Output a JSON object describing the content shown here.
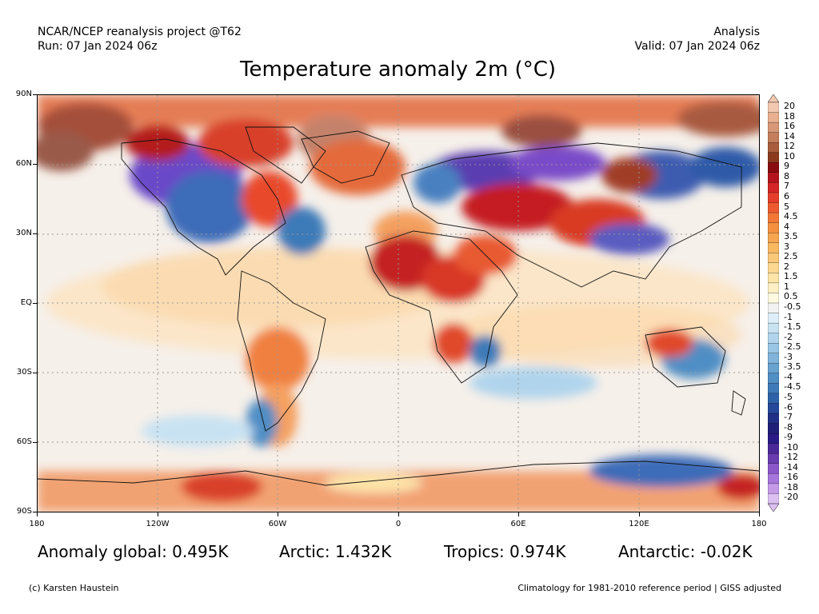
{
  "header": {
    "left_line1": "NCAR/NCEP reanalysis project @T62",
    "left_line2": "Run: 07 Jan 2024 06z",
    "right_line1": "Analysis",
    "right_line2": "Valid: 07 Jan 2024 06z"
  },
  "title": "Temperature anomaly 2m (°C)",
  "axes": {
    "lat_labels": [
      "90N",
      "60N",
      "30N",
      "EQ",
      "30S",
      "60S",
      "90S"
    ],
    "lon_labels": [
      "180",
      "120W",
      "60W",
      "0",
      "60E",
      "120E",
      "180"
    ]
  },
  "colorbar": {
    "labels": [
      "20",
      "18",
      "16",
      "14",
      "12",
      "10",
      "9",
      "8",
      "7",
      "6",
      "5",
      "4.5",
      "4",
      "3.5",
      "3",
      "2.5",
      "2",
      "1.5",
      "1",
      "0.5",
      "-0.5",
      "-1",
      "-1.5",
      "-2",
      "-2.5",
      "-3",
      "-3.5",
      "-4",
      "-4.5",
      "-5",
      "-6",
      "-7",
      "-8",
      "-9",
      "-10",
      "-12",
      "-14",
      "-16",
      "-18",
      "-20"
    ],
    "colors": [
      "#f3c8b0",
      "#e8b090",
      "#d89878",
      "#c47e5c",
      "#a85d3c",
      "#8b3a1e",
      "#8a0c10",
      "#b4141c",
      "#d42626",
      "#e43e2a",
      "#ee5a30",
      "#f27838",
      "#f49040",
      "#f6a650",
      "#f8b860",
      "#fac878",
      "#fcd890",
      "#fde4a8",
      "#fef0c4",
      "#fdfadf",
      "#f2f2f2",
      "#deeef8",
      "#c8e2f2",
      "#b0d4ec",
      "#98c6e4",
      "#80b4da",
      "#68a2d0",
      "#508ec4",
      "#3e7ab8",
      "#2e62a8",
      "#24489a",
      "#203086",
      "#1f1f78",
      "#2a1a86",
      "#4a2898",
      "#6a3cb0",
      "#8a56c8",
      "#a676dc",
      "#c49ae8",
      "#dcc0f2"
    ],
    "top_arrow_color": "#f4c8b0",
    "bottom_arrow_color": "#dcc0f2"
  },
  "stats": {
    "global": "Anomaly global: 0.495K",
    "arctic": "Arctic: 1.432K",
    "tropics": "Tropics: 0.974K",
    "antarctic": "Antarctic: -0.02K"
  },
  "footer": {
    "credit": "(c) Karsten Haustein",
    "climatology": "Climatology for 1981-2010 reference period | GISS adjusted"
  }
}
